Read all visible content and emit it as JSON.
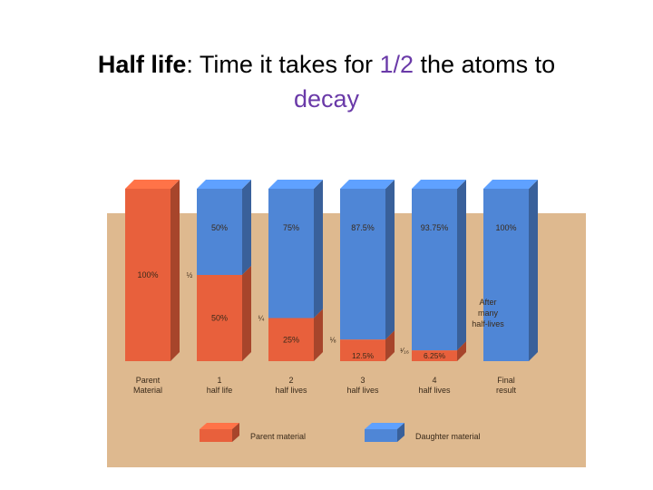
{
  "title": {
    "term": "Half life",
    "colon": ":",
    "part1": " Time it takes for ",
    "fraction": "1/2",
    "part2": " the atoms to",
    "line2": "decay"
  },
  "colors": {
    "parent": "#e8603c",
    "daughter": "#4f86d6",
    "background_tan": "#deb98f",
    "highlight": "#6a3aa8"
  },
  "chart_data": {
    "type": "bar",
    "stacked": true,
    "categories": [
      "Parent Material",
      "1 half life",
      "2 half lives",
      "3 half lives",
      "4 half lives",
      "Final result"
    ],
    "series": [
      {
        "name": "Parent material",
        "color": "#e8603c",
        "values": [
          100,
          50,
          25,
          12.5,
          6.25,
          0
        ]
      },
      {
        "name": "Daughter material",
        "color": "#4f86d6",
        "values": [
          0,
          50,
          75,
          87.5,
          93.75,
          100
        ]
      }
    ],
    "value_labels": {
      "parent": [
        "100%",
        "50%",
        "25%",
        "12.5%",
        "6.25%",
        ""
      ],
      "daughter": [
        "",
        "50%",
        "75%",
        "87.5%",
        "93.75%",
        "100%"
      ]
    },
    "fraction_labels": [
      "",
      "½",
      "¼",
      "⅛",
      "¹⁄₁₆",
      ""
    ],
    "annotation": "After many half-lives",
    "legend": [
      "Parent material",
      "Daughter material"
    ],
    "ylim": [
      0,
      100
    ]
  }
}
